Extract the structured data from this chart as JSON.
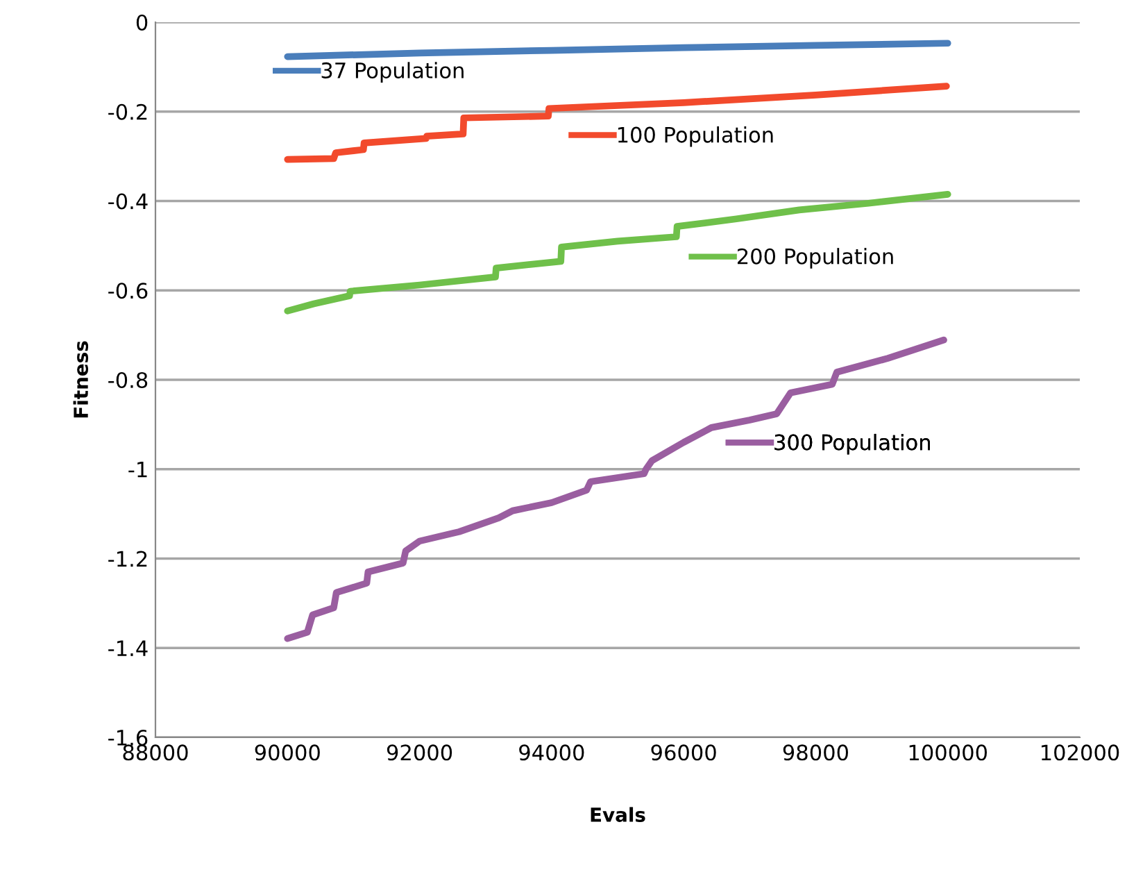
{
  "chart_data": {
    "type": "line",
    "xlabel": "Evals",
    "ylabel": "Fitness",
    "xlim": [
      88000,
      102000
    ],
    "xticks": [
      88000,
      90000,
      92000,
      94000,
      96000,
      98000,
      100000,
      102000
    ],
    "ylim": [
      -1.6,
      0
    ],
    "yticks": [
      -1.6,
      -1.4,
      -1.2,
      -1,
      -0.8,
      -0.6,
      -0.4,
      -0.2,
      0
    ],
    "grid": "y",
    "legend": "top right",
    "line_style": "solid",
    "marker": "none",
    "series": [
      {
        "name": "37 Population",
        "color": "#4a7ebb",
        "x": [
          90000,
          92000,
          94000,
          96000,
          98000,
          100000
        ],
        "values": [
          -0.077,
          -0.069,
          -0.063,
          -0.057,
          -0.052,
          -0.047
        ]
      },
      {
        "name": "100 Population",
        "color": "#f24a2c",
        "x": [
          90000,
          90700,
          90730,
          91150,
          91160,
          92100,
          92110,
          92660,
          92670,
          93950,
          93960,
          96000,
          98000,
          99980
        ],
        "values": [
          -0.307,
          -0.305,
          -0.292,
          -0.285,
          -0.27,
          -0.26,
          -0.255,
          -0.25,
          -0.214,
          -0.21,
          -0.193,
          -0.18,
          -0.163,
          -0.143
        ]
      },
      {
        "name": "200 Population",
        "color": "#6fc04a",
        "x": [
          90000,
          90400,
          90940,
          90950,
          92000,
          93150,
          93160,
          94140,
          94150,
          95000,
          95890,
          95900,
          96800,
          97750,
          98800,
          100000
        ],
        "values": [
          -0.646,
          -0.63,
          -0.612,
          -0.602,
          -0.588,
          -0.57,
          -0.55,
          -0.535,
          -0.503,
          -0.49,
          -0.48,
          -0.457,
          -0.44,
          -0.42,
          -0.405,
          -0.385
        ]
      },
      {
        "name": "300 Population",
        "color": "#9a5ea0",
        "x": [
          90000,
          90300,
          90380,
          90700,
          90740,
          91200,
          91220,
          91750,
          91790,
          92000,
          92600,
          93200,
          93410,
          94000,
          94530,
          94590,
          95400,
          95430,
          95520,
          96000,
          96420,
          97000,
          97410,
          97620,
          98250,
          98320,
          99090,
          99940
        ],
        "values": [
          -1.379,
          -1.365,
          -1.326,
          -1.31,
          -1.276,
          -1.255,
          -1.23,
          -1.21,
          -1.183,
          -1.161,
          -1.14,
          -1.109,
          -1.093,
          -1.075,
          -1.047,
          -1.028,
          -1.01,
          -1.0,
          -0.981,
          -0.94,
          -0.907,
          -0.89,
          -0.876,
          -0.829,
          -0.81,
          -0.783,
          -0.752,
          -0.711
        ]
      }
    ]
  }
}
